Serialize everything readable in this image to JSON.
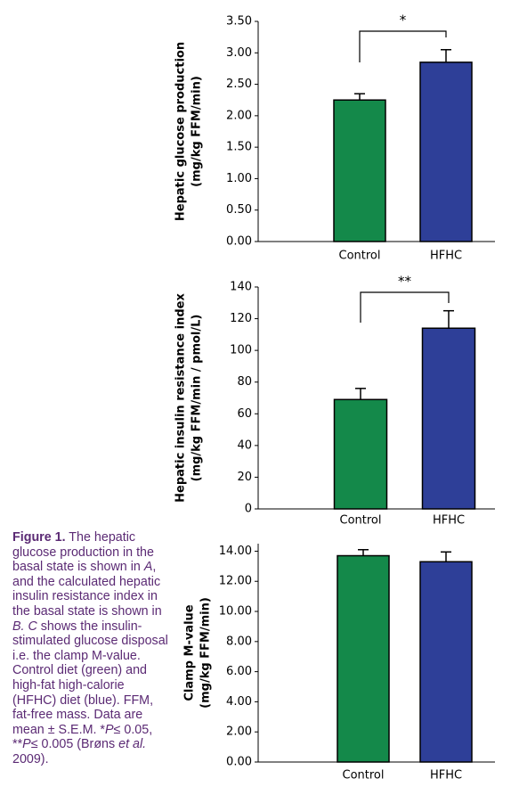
{
  "chart_data": [
    {
      "type": "bar",
      "y_label": [
        "Hepatic glucose production",
        "(mg/kg FFM/min)"
      ],
      "categories": [
        "Control",
        "HFHC"
      ],
      "values": [
        2.25,
        2.85
      ],
      "errors": [
        0.1,
        0.2
      ],
      "colors": [
        "#14894a",
        "#2e3f98"
      ],
      "annotation": "*",
      "ylim": [
        0,
        3.5
      ],
      "yticks": [
        {
          "value": 0,
          "label": "0.00"
        },
        {
          "value": 0.5,
          "label": "0.50"
        },
        {
          "value": 1,
          "label": "1.00"
        },
        {
          "value": 1.5,
          "label": "1.50"
        },
        {
          "value": 2,
          "label": "2.00"
        },
        {
          "value": 2.5,
          "label": "2.50"
        },
        {
          "value": 3,
          "label": "3.00"
        },
        {
          "value": 3.5,
          "label": "3.50"
        }
      ]
    },
    {
      "type": "bar",
      "y_label": [
        "Hepatic insulin resistance index",
        "(mg/kg FFM/min / pmol/L)"
      ],
      "categories": [
        "Control",
        "HFHC"
      ],
      "values": [
        69,
        114
      ],
      "errors": [
        7,
        11
      ],
      "colors": [
        "#14894a",
        "#2e3f98"
      ],
      "annotation": "**",
      "ylim": [
        0,
        140
      ],
      "yticks": [
        0,
        20,
        40,
        60,
        80,
        100,
        120,
        140
      ]
    },
    {
      "type": "bar",
      "y_label": [
        "Clamp M-value",
        "(mg/kg FFM/min)"
      ],
      "categories": [
        "Control",
        "HFHC"
      ],
      "values": [
        13.7,
        13.3
      ],
      "errors": [
        0.4,
        0.65
      ],
      "colors": [
        "#14894a",
        "#2e3f98"
      ],
      "ylim": [
        0,
        14.5
      ],
      "yticks": [
        {
          "value": 0,
          "label": "0.00"
        },
        {
          "value": 2,
          "label": "2.00"
        },
        {
          "value": 4,
          "label": "4.00"
        },
        {
          "value": 6,
          "label": "6.00"
        },
        {
          "value": 8,
          "label": "8.00"
        },
        {
          "value": 10,
          "label": "10.00"
        },
        {
          "value": 12,
          "label": "12.00"
        },
        {
          "value": 14,
          "label": "14.00"
        }
      ]
    }
  ],
  "caption": [
    "Figure 1.",
    " The hepatic glucose production in the basal state is shown in ",
    "A",
    ", and the calculated hepatic insulin resistance index in the basal state is shown in ",
    "B. C",
    " shows the insulin-stimulated glucose disposal i.e. the clamp M-value. Control diet (green) and high-fat high-calorie (HFHC) diet (blue). FFM, fat-free mass. Data are mean ± S.E.M. *",
    "P",
    "≤ 0.05, **",
    "P",
    "≤ 0.005 (Brøns ",
    "et al.",
    " 2009)."
  ]
}
